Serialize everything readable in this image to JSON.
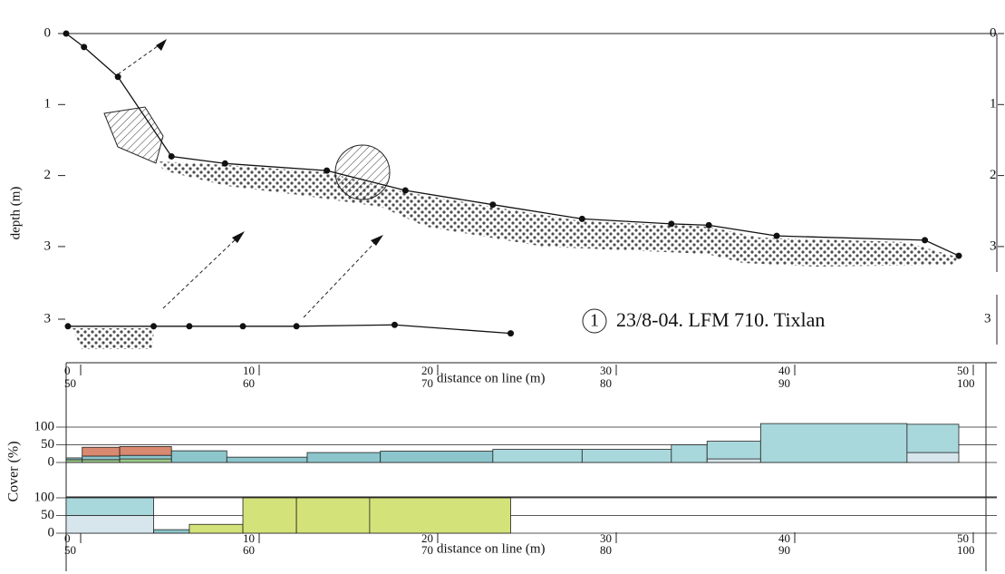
{
  "depth_axis": {
    "label": "depth (m)",
    "ticks": [
      0,
      1,
      2,
      3
    ]
  },
  "profile": {
    "points": [
      [
        0,
        0
      ],
      [
        1,
        0.19
      ],
      [
        2.9,
        0.61
      ],
      [
        5.9,
        1.73
      ],
      [
        8.9,
        1.83
      ],
      [
        14.6,
        1.93
      ],
      [
        19,
        2.21
      ],
      [
        23.9,
        2.41
      ],
      [
        28.9,
        2.61
      ],
      [
        33.9,
        2.68
      ],
      [
        36,
        2.7
      ],
      [
        39.8,
        2.85
      ],
      [
        48.1,
        2.91
      ],
      [
        50,
        3.13
      ]
    ]
  },
  "inset": {
    "ticks": [
      3
    ],
    "points": [
      [
        50.1,
        3.1
      ],
      [
        54.9,
        3.1
      ],
      [
        56.9,
        3.1
      ],
      [
        59.9,
        3.1
      ],
      [
        62.9,
        3.1
      ],
      [
        68.4,
        3.08
      ],
      [
        74.9,
        3.2
      ]
    ]
  },
  "site": {
    "number": "1",
    "title": "23/8-04. LFM 710. Tixlan"
  },
  "distance_axis": {
    "label": "distance on line (m)",
    "ticks": [
      0,
      10,
      20,
      30,
      40,
      50
    ],
    "ticks_second": [
      50,
      60,
      70,
      80,
      90,
      100
    ]
  },
  "cover_axis": {
    "label": "Cover (%)",
    "ticks": [
      0,
      50,
      100
    ]
  },
  "cover_upper": [
    {
      "start": 0,
      "end": 0.9,
      "segments": [
        {
          "value": 8,
          "color": "#9cc98a"
        },
        {
          "value": 5,
          "color": "#8cc6cc"
        }
      ]
    },
    {
      "start": 0.9,
      "end": 3,
      "segments": [
        {
          "value": 8,
          "color": "#9cc98a"
        },
        {
          "value": 10,
          "color": "#8cc6cc"
        },
        {
          "value": 25,
          "color": "#d9896f"
        }
      ]
    },
    {
      "start": 3,
      "end": 5.9,
      "segments": [
        {
          "value": 10,
          "color": "#9cc98a"
        },
        {
          "value": 10,
          "color": "#8cc6cc"
        },
        {
          "value": 25,
          "color": "#d9896f"
        }
      ]
    },
    {
      "start": 5.9,
      "end": 9,
      "segments": [
        {
          "value": 33,
          "color": "#8cc6cc"
        }
      ]
    },
    {
      "start": 9,
      "end": 13.5,
      "segments": [
        {
          "value": 15,
          "color": "#8cc6cc"
        }
      ]
    },
    {
      "start": 13.5,
      "end": 17.6,
      "segments": [
        {
          "value": 28,
          "color": "#8cc6cc"
        }
      ]
    },
    {
      "start": 17.6,
      "end": 23.9,
      "segments": [
        {
          "value": 32,
          "color": "#8cc6cc"
        }
      ]
    },
    {
      "start": 23.9,
      "end": 28.9,
      "segments": [
        {
          "value": 37,
          "color": "#a9d8dc"
        }
      ]
    },
    {
      "start": 28.9,
      "end": 33.9,
      "segments": [
        {
          "value": 37,
          "color": "#a9d8dc"
        }
      ]
    },
    {
      "start": 33.9,
      "end": 35.9,
      "segments": [
        {
          "value": 50,
          "color": "#a9d8dc"
        }
      ]
    },
    {
      "start": 35.9,
      "end": 38.9,
      "segments": [
        {
          "value": 10,
          "color": "#d6e6ec"
        },
        {
          "value": 50,
          "color": "#a9d8dc"
        }
      ]
    },
    {
      "start": 38.9,
      "end": 47.1,
      "segments": [
        {
          "value": 110,
          "color": "#a9d8dc"
        }
      ]
    },
    {
      "start": 47.1,
      "end": 50,
      "segments": [
        {
          "value": 28,
          "color": "#d6e6ec"
        },
        {
          "value": 80,
          "color": "#a9d8dc"
        }
      ]
    }
  ],
  "cover_lower": [
    {
      "start": 50,
      "end": 54.9,
      "segments": [
        {
          "value": 50,
          "color": "#d6e6ec"
        },
        {
          "value": 50,
          "color": "#a9d8dc"
        }
      ]
    },
    {
      "start": 54.9,
      "end": 56.9,
      "segments": [
        {
          "value": 10,
          "color": "#8cc6cc"
        }
      ]
    },
    {
      "start": 56.9,
      "end": 59.9,
      "segments": [
        {
          "value": 25,
          "color": "#d4e27a"
        }
      ]
    },
    {
      "start": 59.9,
      "end": 62.9,
      "segments": [
        {
          "value": 100,
          "color": "#d4e27a"
        }
      ]
    },
    {
      "start": 62.9,
      "end": 67,
      "segments": [
        {
          "value": 100,
          "color": "#d4e27a"
        }
      ]
    },
    {
      "start": 67,
      "end": 74.9,
      "segments": [
        {
          "value": 100,
          "color": "#d4e27a"
        }
      ]
    }
  ]
}
